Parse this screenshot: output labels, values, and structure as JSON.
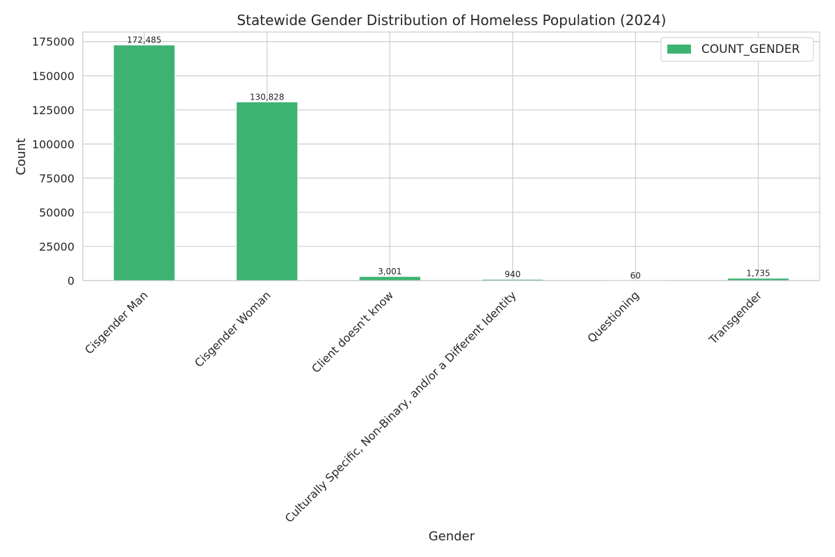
{
  "chart_data": {
    "type": "bar",
    "title": "Statewide Gender Distribution of Homeless Population (2024)",
    "xlabel": "Gender",
    "ylabel": "Count",
    "categories": [
      "Cisgender Man",
      "Cisgender Woman",
      "Client doesn't know",
      "Culturally Specific, Non-Binary, and/or a Different Identity",
      "Questioning",
      "Transgender"
    ],
    "series": [
      {
        "name": "COUNT_GENDER",
        "color": "#3cb371",
        "values": [
          172485,
          130828,
          3001,
          940,
          60,
          1735
        ],
        "data_labels": [
          "172,485",
          "130,828",
          "3,001",
          "940",
          "60",
          "1,735"
        ]
      }
    ],
    "ylim": [
      0,
      182000
    ],
    "yticks": [
      0,
      25000,
      50000,
      75000,
      100000,
      125000,
      150000,
      175000
    ],
    "ytick_labels": [
      "0",
      "25000",
      "50000",
      "75000",
      "100000",
      "125000",
      "150000",
      "175000"
    ],
    "grid": true,
    "legend": "top-right"
  }
}
